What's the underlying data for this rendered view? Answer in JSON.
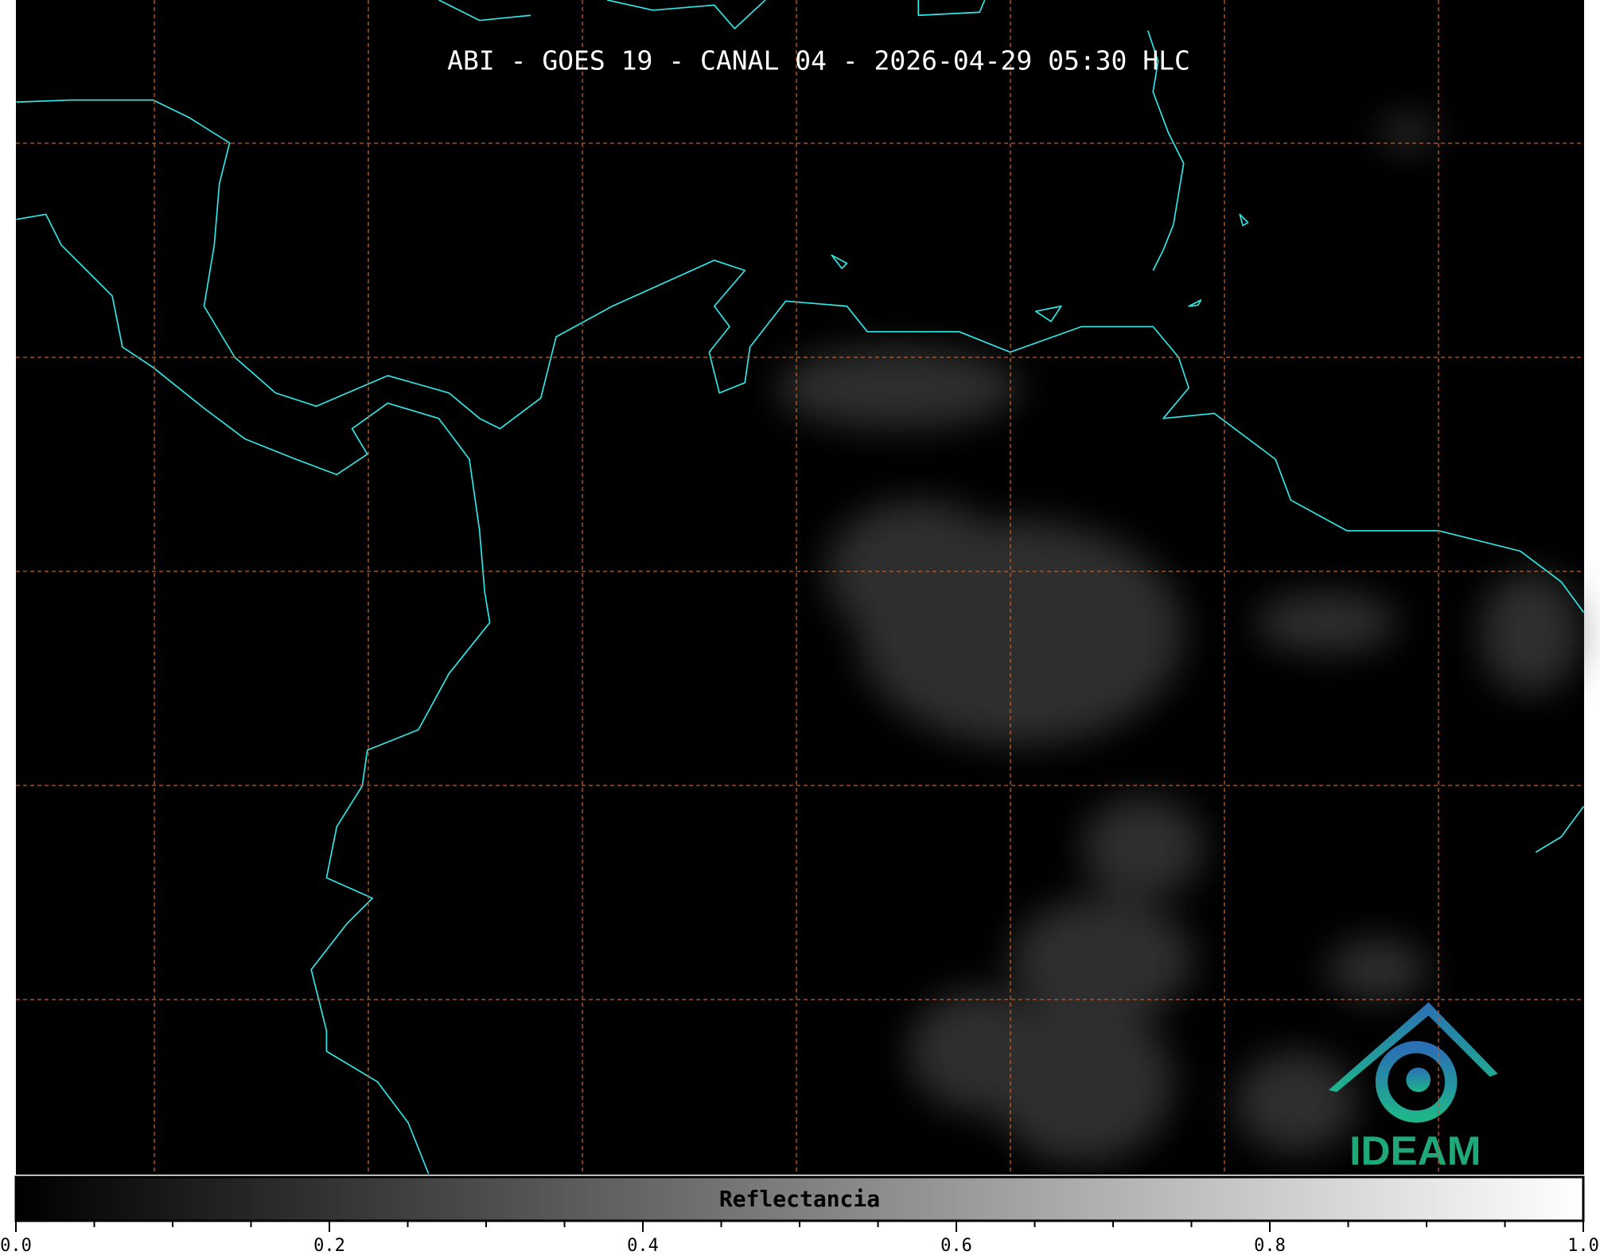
{
  "map": {
    "title": "ABI - GOES 19 - CANAL 04 - 2026-04-29 05:30 HLC",
    "logo": "IDEAM"
  },
  "colorbar": {
    "label": "Reflectancia",
    "lim": [
      0,
      1
    ],
    "ticks": [
      {
        "value": 0,
        "label": "0.0"
      },
      {
        "value": 0.2,
        "label": "0.2"
      },
      {
        "value": 0.4,
        "label": "0.4"
      },
      {
        "value": 0.6,
        "label": "0.6"
      },
      {
        "value": 0.8,
        "label": "0.8"
      },
      {
        "value": 1,
        "label": "1.0"
      }
    ],
    "minor_ticks": [
      0.1,
      0.3,
      0.5,
      0.7,
      0.9,
      0.05,
      0.15,
      0.25,
      0.35,
      0.45,
      0.55,
      0.65,
      0.75,
      0.85,
      0.95
    ]
  }
}
